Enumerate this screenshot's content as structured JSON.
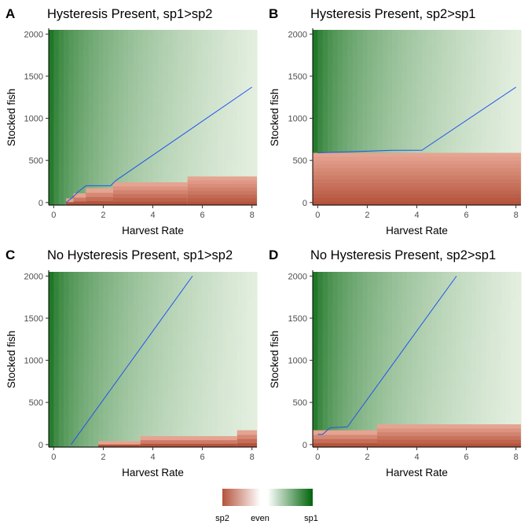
{
  "figure": {
    "legend": {
      "labels": [
        "sp2",
        "even",
        "sp1"
      ],
      "colors": {
        "sp2": "#b5533c",
        "even": "#ffffff",
        "sp1": "#00640a"
      }
    }
  },
  "chart_data": [
    {
      "type": "heatmap",
      "panel": "A",
      "title": "Hysteresis Present, sp1>sp2",
      "xlabel": "Harvest Rate",
      "ylabel": "Stocked fish",
      "xlim": [
        -0.2,
        8.2
      ],
      "ylim": [
        -30,
        2050
      ],
      "x_ticks": [
        0,
        2,
        4,
        6,
        8
      ],
      "y_ticks": [
        0,
        500,
        1000,
        1500,
        2000
      ],
      "sp2_region_steps": [
        {
          "x_start": 0.5,
          "x_end": 0.8,
          "top": 50
        },
        {
          "x_start": 0.8,
          "x_end": 1.3,
          "top": 110
        },
        {
          "x_start": 1.3,
          "x_end": 2.4,
          "top": 170
        },
        {
          "x_start": 2.4,
          "x_end": 5.4,
          "top": 240
        },
        {
          "x_start": 5.4,
          "x_end": 8.2,
          "top": 310
        }
      ],
      "boundary_line": {
        "color": "#2255ee",
        "x": [
          0.5,
          0.8,
          1.0,
          1.3,
          2.3,
          2.5,
          8.0
        ],
        "y": [
          0,
          70,
          130,
          200,
          200,
          260,
          1370
        ]
      }
    },
    {
      "type": "heatmap",
      "panel": "B",
      "title": "Hysteresis Present, sp2>sp1",
      "xlabel": "Harvest Rate",
      "ylabel": "Stocked fish",
      "xlim": [
        -0.2,
        8.2
      ],
      "ylim": [
        -30,
        2050
      ],
      "x_ticks": [
        0,
        2,
        4,
        6,
        8
      ],
      "y_ticks": [
        0,
        500,
        1000,
        1500,
        2000
      ],
      "sp2_region_steps": [
        {
          "x_start": -0.2,
          "x_end": 8.2,
          "top": 590
        }
      ],
      "boundary_line": {
        "color": "#2255ee",
        "x": [
          0.0,
          2.0,
          3.0,
          4.2,
          8.0
        ],
        "y": [
          590,
          610,
          620,
          620,
          1370
        ]
      }
    },
    {
      "type": "heatmap",
      "panel": "C",
      "title": "No Hysteresis Present, sp1>sp2",
      "xlabel": "Harvest Rate",
      "ylabel": "Stocked fish",
      "xlim": [
        -0.2,
        8.2
      ],
      "ylim": [
        -30,
        2050
      ],
      "x_ticks": [
        0,
        2,
        4,
        6,
        8
      ],
      "y_ticks": [
        0,
        500,
        1000,
        1500,
        2000
      ],
      "sp2_region_steps": [
        {
          "x_start": 1.8,
          "x_end": 3.5,
          "top": 40
        },
        {
          "x_start": 3.5,
          "x_end": 7.4,
          "top": 100
        },
        {
          "x_start": 7.4,
          "x_end": 8.2,
          "top": 170
        }
      ],
      "boundary_line": {
        "color": "#2255ee",
        "x": [
          0.7,
          5.6
        ],
        "y": [
          0,
          2000
        ]
      }
    },
    {
      "type": "heatmap",
      "panel": "D",
      "title": "No Hysteresis Present, sp2>sp1",
      "xlabel": "Harvest Rate",
      "ylabel": "Stocked fish",
      "xlim": [
        -0.2,
        8.2
      ],
      "ylim": [
        -30,
        2050
      ],
      "x_ticks": [
        0,
        2,
        4,
        6,
        8
      ],
      "y_ticks": [
        0,
        500,
        1000,
        1500,
        2000
      ],
      "sp2_region_steps": [
        {
          "x_start": -0.2,
          "x_end": 2.4,
          "top": 170
        },
        {
          "x_start": 2.4,
          "x_end": 8.2,
          "top": 240
        }
      ],
      "boundary_line": {
        "color": "#2255ee",
        "x": [
          0.0,
          0.2,
          0.5,
          1.2,
          5.6
        ],
        "y": [
          120,
          120,
          200,
          210,
          2000
        ]
      }
    }
  ]
}
